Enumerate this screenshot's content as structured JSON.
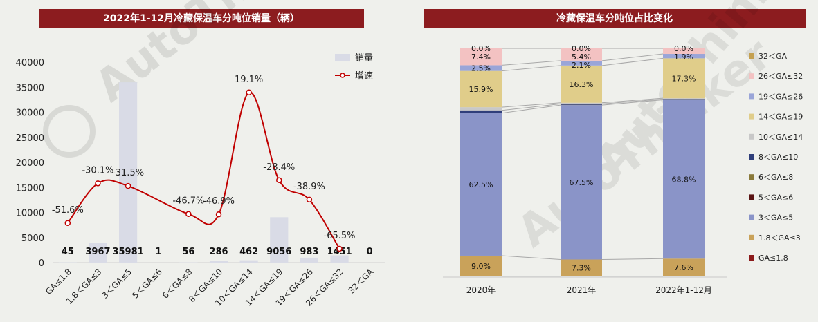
{
  "chart_data": [
    {
      "type": "bar",
      "title": "2022年1-12月冷藏保温车分吨位销量（辆）",
      "categories": [
        "GA≤1.8",
        "1.8＜GA≤3",
        "3＜GA≤5",
        "5＜GA≤6",
        "6＜GA≤8",
        "8＜GA≤10",
        "10＜GA≤14",
        "14＜GA≤19",
        "19＜GA≤26",
        "26＜GA≤32",
        "32＜GA"
      ],
      "ylim": [
        0,
        40000
      ],
      "yticks": [
        0,
        5000,
        10000,
        15000,
        20000,
        25000,
        30000,
        35000,
        40000
      ],
      "series": [
        {
          "name": "销量",
          "kind": "bar",
          "color": "#d9dbe6",
          "values": [
            45,
            3967,
            35981,
            1,
            56,
            286,
            462,
            9056,
            983,
            1451,
            0
          ],
          "value_labels": [
            "45",
            "3967",
            "35981",
            "1",
            "56",
            "286",
            "462",
            "9056",
            "983",
            "1451",
            "0"
          ]
        },
        {
          "name": "增速",
          "kind": "line",
          "color": "#c00000",
          "values": [
            -51.6,
            -30.1,
            -31.5,
            null,
            -46.7,
            -46.9,
            19.1,
            -28.4,
            -38.9,
            -65.5,
            null
          ],
          "labels": [
            "-51.6%",
            "-30.1%",
            "-31.5%",
            "",
            "-46.7%",
            "-46.9%",
            "19.1%",
            "-28.4%",
            "-38.9%",
            "-65.5%",
            ""
          ]
        }
      ],
      "legend_position": "top-right",
      "grid": false
    },
    {
      "type": "bar",
      "stacked": true,
      "percent": true,
      "title": "冷藏保温车分吨位占比变化",
      "categories": [
        "2020年",
        "2021年",
        "2022年1-12月"
      ],
      "series": [
        {
          "name": "GA≤1.8",
          "color": "#8b1a1a",
          "values": [
            0.1,
            0.1,
            0.1
          ],
          "labels": [
            "",
            "",
            ""
          ]
        },
        {
          "name": "1.8＜GA≤3",
          "color": "#c9a25a",
          "values": [
            9.0,
            7.3,
            7.6
          ],
          "labels": [
            "9.0%",
            "7.3%",
            "7.6%"
          ]
        },
        {
          "name": "3＜GA≤5",
          "color": "#8a94c8",
          "values": [
            62.5,
            67.5,
            68.8
          ],
          "labels": [
            "62.5%",
            "67.5%",
            "68.8%"
          ]
        },
        {
          "name": "5＜GA≤6",
          "color": "#5a1414",
          "values": [
            0.0,
            0.0,
            0.0
          ],
          "labels": [
            "",
            "",
            ""
          ]
        },
        {
          "name": "6＜GA≤8",
          "color": "#8a7a3a",
          "values": [
            0.2,
            0.1,
            0.1
          ],
          "labels": [
            "",
            "",
            ""
          ]
        },
        {
          "name": "8＜GA≤10",
          "color": "#2f3e7a",
          "values": [
            1.0,
            0.4,
            0.2
          ],
          "labels": [
            "",
            "",
            ""
          ]
        },
        {
          "name": "10＜GA≤14",
          "color": "#c8c8c8",
          "values": [
            1.4,
            0.5,
            0.4
          ],
          "labels": [
            "",
            "",
            ""
          ]
        },
        {
          "name": "14＜GA≤19",
          "color": "#e0cd8a",
          "values": [
            15.9,
            16.3,
            17.3
          ],
          "labels": [
            "15.9%",
            "16.3%",
            "17.3%"
          ]
        },
        {
          "name": "19＜GA≤26",
          "color": "#9aa5d8",
          "values": [
            2.5,
            2.1,
            1.9
          ],
          "labels": [
            "2.5%",
            "2.1%",
            "1.9%"
          ]
        },
        {
          "name": "26＜GA≤32",
          "color": "#f3c2c2",
          "values": [
            7.4,
            5.4,
            2.4
          ],
          "labels": [
            "7.4%",
            "5.4%",
            ""
          ]
        },
        {
          "name": "32＜GA",
          "color": "#c4a050",
          "values": [
            0.0,
            0.0,
            0.0
          ],
          "labels": [
            "0.0%",
            "0.0%",
            "0.0%"
          ]
        }
      ],
      "legend_order": [
        "32＜GA",
        "26＜GA≤32",
        "19＜GA≤26",
        "14＜GA≤19",
        "10＜GA≤14",
        "8＜GA≤10",
        "6＜GA≤8",
        "5＜GA≤6",
        "3＜GA≤5",
        "1.8＜GA≤3",
        "GA≤1.8"
      ],
      "legend_position": "right",
      "grid": false
    }
  ],
  "watermark": {
    "brand": "AutoThinker",
    "chars": "汽车智库"
  }
}
